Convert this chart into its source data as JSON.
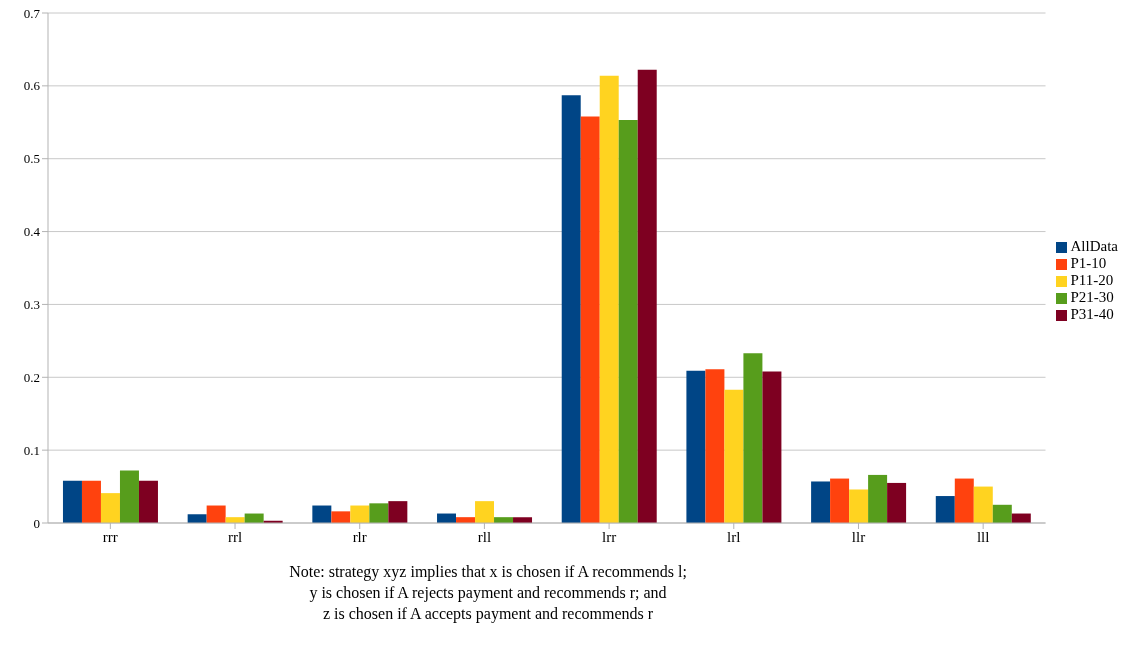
{
  "chart_data": {
    "type": "bar",
    "categories": [
      "rrr",
      "rrl",
      "rlr",
      "rll",
      "lrr",
      "lrl",
      "llr",
      "lll"
    ],
    "series": [
      {
        "name": "AllData",
        "color": "#004586",
        "values": [
          0.058,
          0.012,
          0.024,
          0.013,
          0.587,
          0.209,
          0.057,
          0.037
        ]
      },
      {
        "name": "P1-10",
        "color": "#ff420e",
        "values": [
          0.058,
          0.024,
          0.016,
          0.008,
          0.558,
          0.211,
          0.061,
          0.061
        ]
      },
      {
        "name": "P11-20",
        "color": "#ffd320",
        "values": [
          0.041,
          0.008,
          0.024,
          0.03,
          0.614,
          0.183,
          0.046,
          0.05
        ]
      },
      {
        "name": "P21-30",
        "color": "#579d1c",
        "values": [
          0.072,
          0.013,
          0.027,
          0.008,
          0.553,
          0.233,
          0.066,
          0.025
        ]
      },
      {
        "name": "P31-40",
        "color": "#7e0021",
        "values": [
          0.058,
          0.003,
          0.03,
          0.008,
          0.622,
          0.208,
          0.055,
          0.013
        ]
      }
    ],
    "ylim": [
      0,
      0.7
    ],
    "yticks": [
      0,
      0.1,
      0.2,
      0.3,
      0.4,
      0.5,
      0.6,
      0.7
    ],
    "grid": "y",
    "legend": "right",
    "annotations": [
      "Note: strategy xyz implies that x is chosen if A recommends l;",
      "y is chosen if A rejects payment and recommends r; and",
      "z is chosen if A accepts payment and recommends r"
    ]
  }
}
